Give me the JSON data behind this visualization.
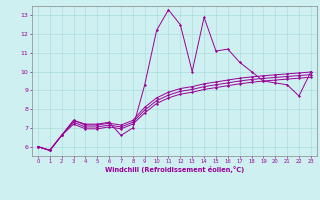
{
  "title": "",
  "xlabel": "Windchill (Refroidissement éolien,°C)",
  "ylabel": "",
  "background_color": "#cff0f0",
  "line_color": "#990099",
  "grid_color": "#aadddd",
  "xlim": [
    -0.5,
    23.5
  ],
  "ylim": [
    5.5,
    13.5
  ],
  "xticks": [
    0,
    1,
    2,
    3,
    4,
    5,
    6,
    7,
    8,
    9,
    10,
    11,
    12,
    13,
    14,
    15,
    16,
    17,
    18,
    19,
    20,
    21,
    22,
    23
  ],
  "yticks": [
    6,
    7,
    8,
    9,
    10,
    11,
    12,
    13
  ],
  "series": [
    [
      6.0,
      5.8,
      6.6,
      7.4,
      7.2,
      7.2,
      7.3,
      6.6,
      7.0,
      9.3,
      12.2,
      13.3,
      12.5,
      10.0,
      12.9,
      11.1,
      11.2,
      10.5,
      10.0,
      9.5,
      9.4,
      9.3,
      8.7,
      10.0
    ],
    [
      6.0,
      5.8,
      6.6,
      7.4,
      7.15,
      7.15,
      7.25,
      7.15,
      7.4,
      8.1,
      8.6,
      8.9,
      9.1,
      9.2,
      9.35,
      9.45,
      9.55,
      9.65,
      9.72,
      9.78,
      9.83,
      9.88,
      9.93,
      9.98
    ],
    [
      6.0,
      5.8,
      6.6,
      7.3,
      7.05,
      7.05,
      7.15,
      7.05,
      7.3,
      7.95,
      8.45,
      8.75,
      8.95,
      9.05,
      9.2,
      9.3,
      9.4,
      9.5,
      9.58,
      9.64,
      9.69,
      9.74,
      9.79,
      9.84
    ],
    [
      6.0,
      5.8,
      6.6,
      7.2,
      6.95,
      6.95,
      7.05,
      6.95,
      7.2,
      7.8,
      8.3,
      8.6,
      8.8,
      8.9,
      9.05,
      9.15,
      9.25,
      9.35,
      9.43,
      9.5,
      9.55,
      9.6,
      9.65,
      9.7
    ]
  ]
}
